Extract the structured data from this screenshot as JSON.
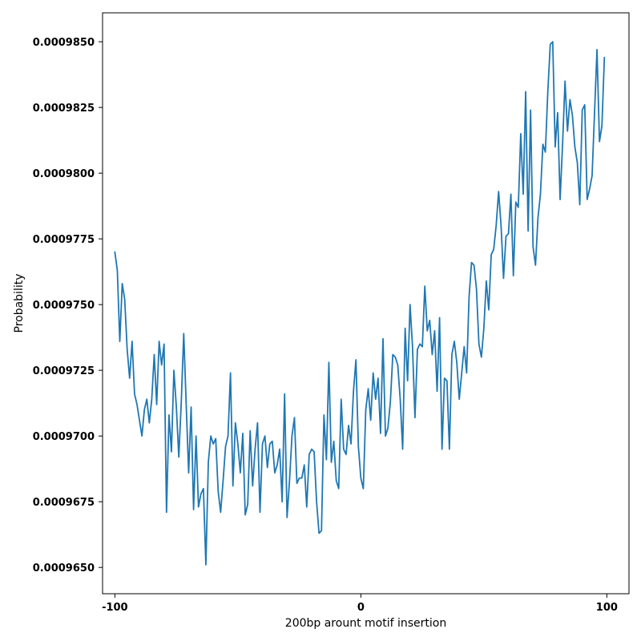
{
  "chart_data": {
    "type": "line",
    "title": "",
    "xlabel": "200bp arount motif insertion",
    "ylabel": "Probability",
    "xlim": [
      -105,
      109
    ],
    "ylim": [
      0.000964,
      0.0009861
    ],
    "xticks": [
      -100,
      0,
      100
    ],
    "xtick_labels": [
      "-100",
      "0",
      "100"
    ],
    "yticks": [
      0.000965,
      0.0009675,
      0.00097,
      0.0009725,
      0.000975,
      0.0009775,
      0.00098,
      0.0009825,
      0.000985
    ],
    "ytick_labels": [
      "0.0009650",
      "0.0009675",
      "0.0009700",
      "0.0009725",
      "0.0009750",
      "0.0009775",
      "0.0009800",
      "0.0009825",
      "0.0009850"
    ],
    "grid": false,
    "legend": "none",
    "colors": {
      "line": "#1f77b4"
    },
    "series": [
      {
        "x_start": -100,
        "x_step": 1,
        "values": [
          0.000977,
          0.0009763,
          0.0009736,
          0.0009758,
          0.0009752,
          0.0009733,
          0.0009722,
          0.0009736,
          0.0009716,
          0.0009712,
          0.0009706,
          0.00097,
          0.000971,
          0.0009714,
          0.0009705,
          0.0009714,
          0.0009731,
          0.0009712,
          0.0009736,
          0.0009727,
          0.0009735,
          0.0009671,
          0.0009708,
          0.0009694,
          0.0009725,
          0.0009711,
          0.0009692,
          0.0009713,
          0.0009739,
          0.0009712,
          0.0009686,
          0.0009711,
          0.0009672,
          0.00097,
          0.0009673,
          0.0009678,
          0.000968,
          0.0009651,
          0.000969,
          0.00097,
          0.0009697,
          0.0009699,
          0.0009679,
          0.0009671,
          0.0009683,
          0.0009696,
          0.00097,
          0.0009724,
          0.0009681,
          0.0009705,
          0.0009697,
          0.0009686,
          0.0009701,
          0.000967,
          0.0009674,
          0.0009702,
          0.0009681,
          0.0009695,
          0.0009705,
          0.0009671,
          0.0009697,
          0.00097,
          0.0009688,
          0.0009697,
          0.0009698,
          0.0009686,
          0.0009689,
          0.0009695,
          0.0009675,
          0.0009716,
          0.0009669,
          0.0009683,
          0.00097,
          0.0009707,
          0.0009682,
          0.0009684,
          0.0009684,
          0.0009689,
          0.0009673,
          0.0009693,
          0.0009695,
          0.0009694,
          0.0009675,
          0.0009663,
          0.0009664,
          0.0009708,
          0.0009691,
          0.0009728,
          0.000969,
          0.0009698,
          0.0009683,
          0.000968,
          0.0009714,
          0.0009695,
          0.0009693,
          0.0009704,
          0.0009697,
          0.0009717,
          0.0009729,
          0.0009696,
          0.0009684,
          0.000968,
          0.000971,
          0.0009718,
          0.0009706,
          0.0009724,
          0.0009714,
          0.0009722,
          0.0009701,
          0.0009737,
          0.00097,
          0.0009703,
          0.0009713,
          0.0009731,
          0.000973,
          0.0009727,
          0.0009714,
          0.0009695,
          0.0009741,
          0.0009721,
          0.000975,
          0.0009734,
          0.0009707,
          0.0009733,
          0.0009735,
          0.0009734,
          0.0009757,
          0.000974,
          0.0009744,
          0.0009731,
          0.000974,
          0.0009717,
          0.0009745,
          0.0009695,
          0.0009722,
          0.0009721,
          0.0009695,
          0.0009731,
          0.0009736,
          0.0009728,
          0.0009714,
          0.0009724,
          0.0009734,
          0.0009724,
          0.0009753,
          0.0009766,
          0.0009765,
          0.0009756,
          0.0009735,
          0.000973,
          0.0009741,
          0.0009759,
          0.0009748,
          0.0009769,
          0.0009771,
          0.000978,
          0.0009793,
          0.000978,
          0.000976,
          0.0009776,
          0.0009777,
          0.0009792,
          0.0009761,
          0.0009789,
          0.0009787,
          0.0009815,
          0.0009792,
          0.0009831,
          0.0009778,
          0.0009824,
          0.0009772,
          0.0009765,
          0.0009783,
          0.0009792,
          0.0009811,
          0.0009808,
          0.0009831,
          0.0009849,
          0.000985,
          0.000981,
          0.0009823,
          0.000979,
          0.0009811,
          0.0009835,
          0.0009816,
          0.0009828,
          0.0009822,
          0.000981,
          0.0009804,
          0.0009788,
          0.0009824,
          0.0009826,
          0.000979,
          0.0009794,
          0.0009799,
          0.0009823,
          0.0009847,
          0.0009812,
          0.0009818,
          0.0009844
        ]
      }
    ]
  }
}
